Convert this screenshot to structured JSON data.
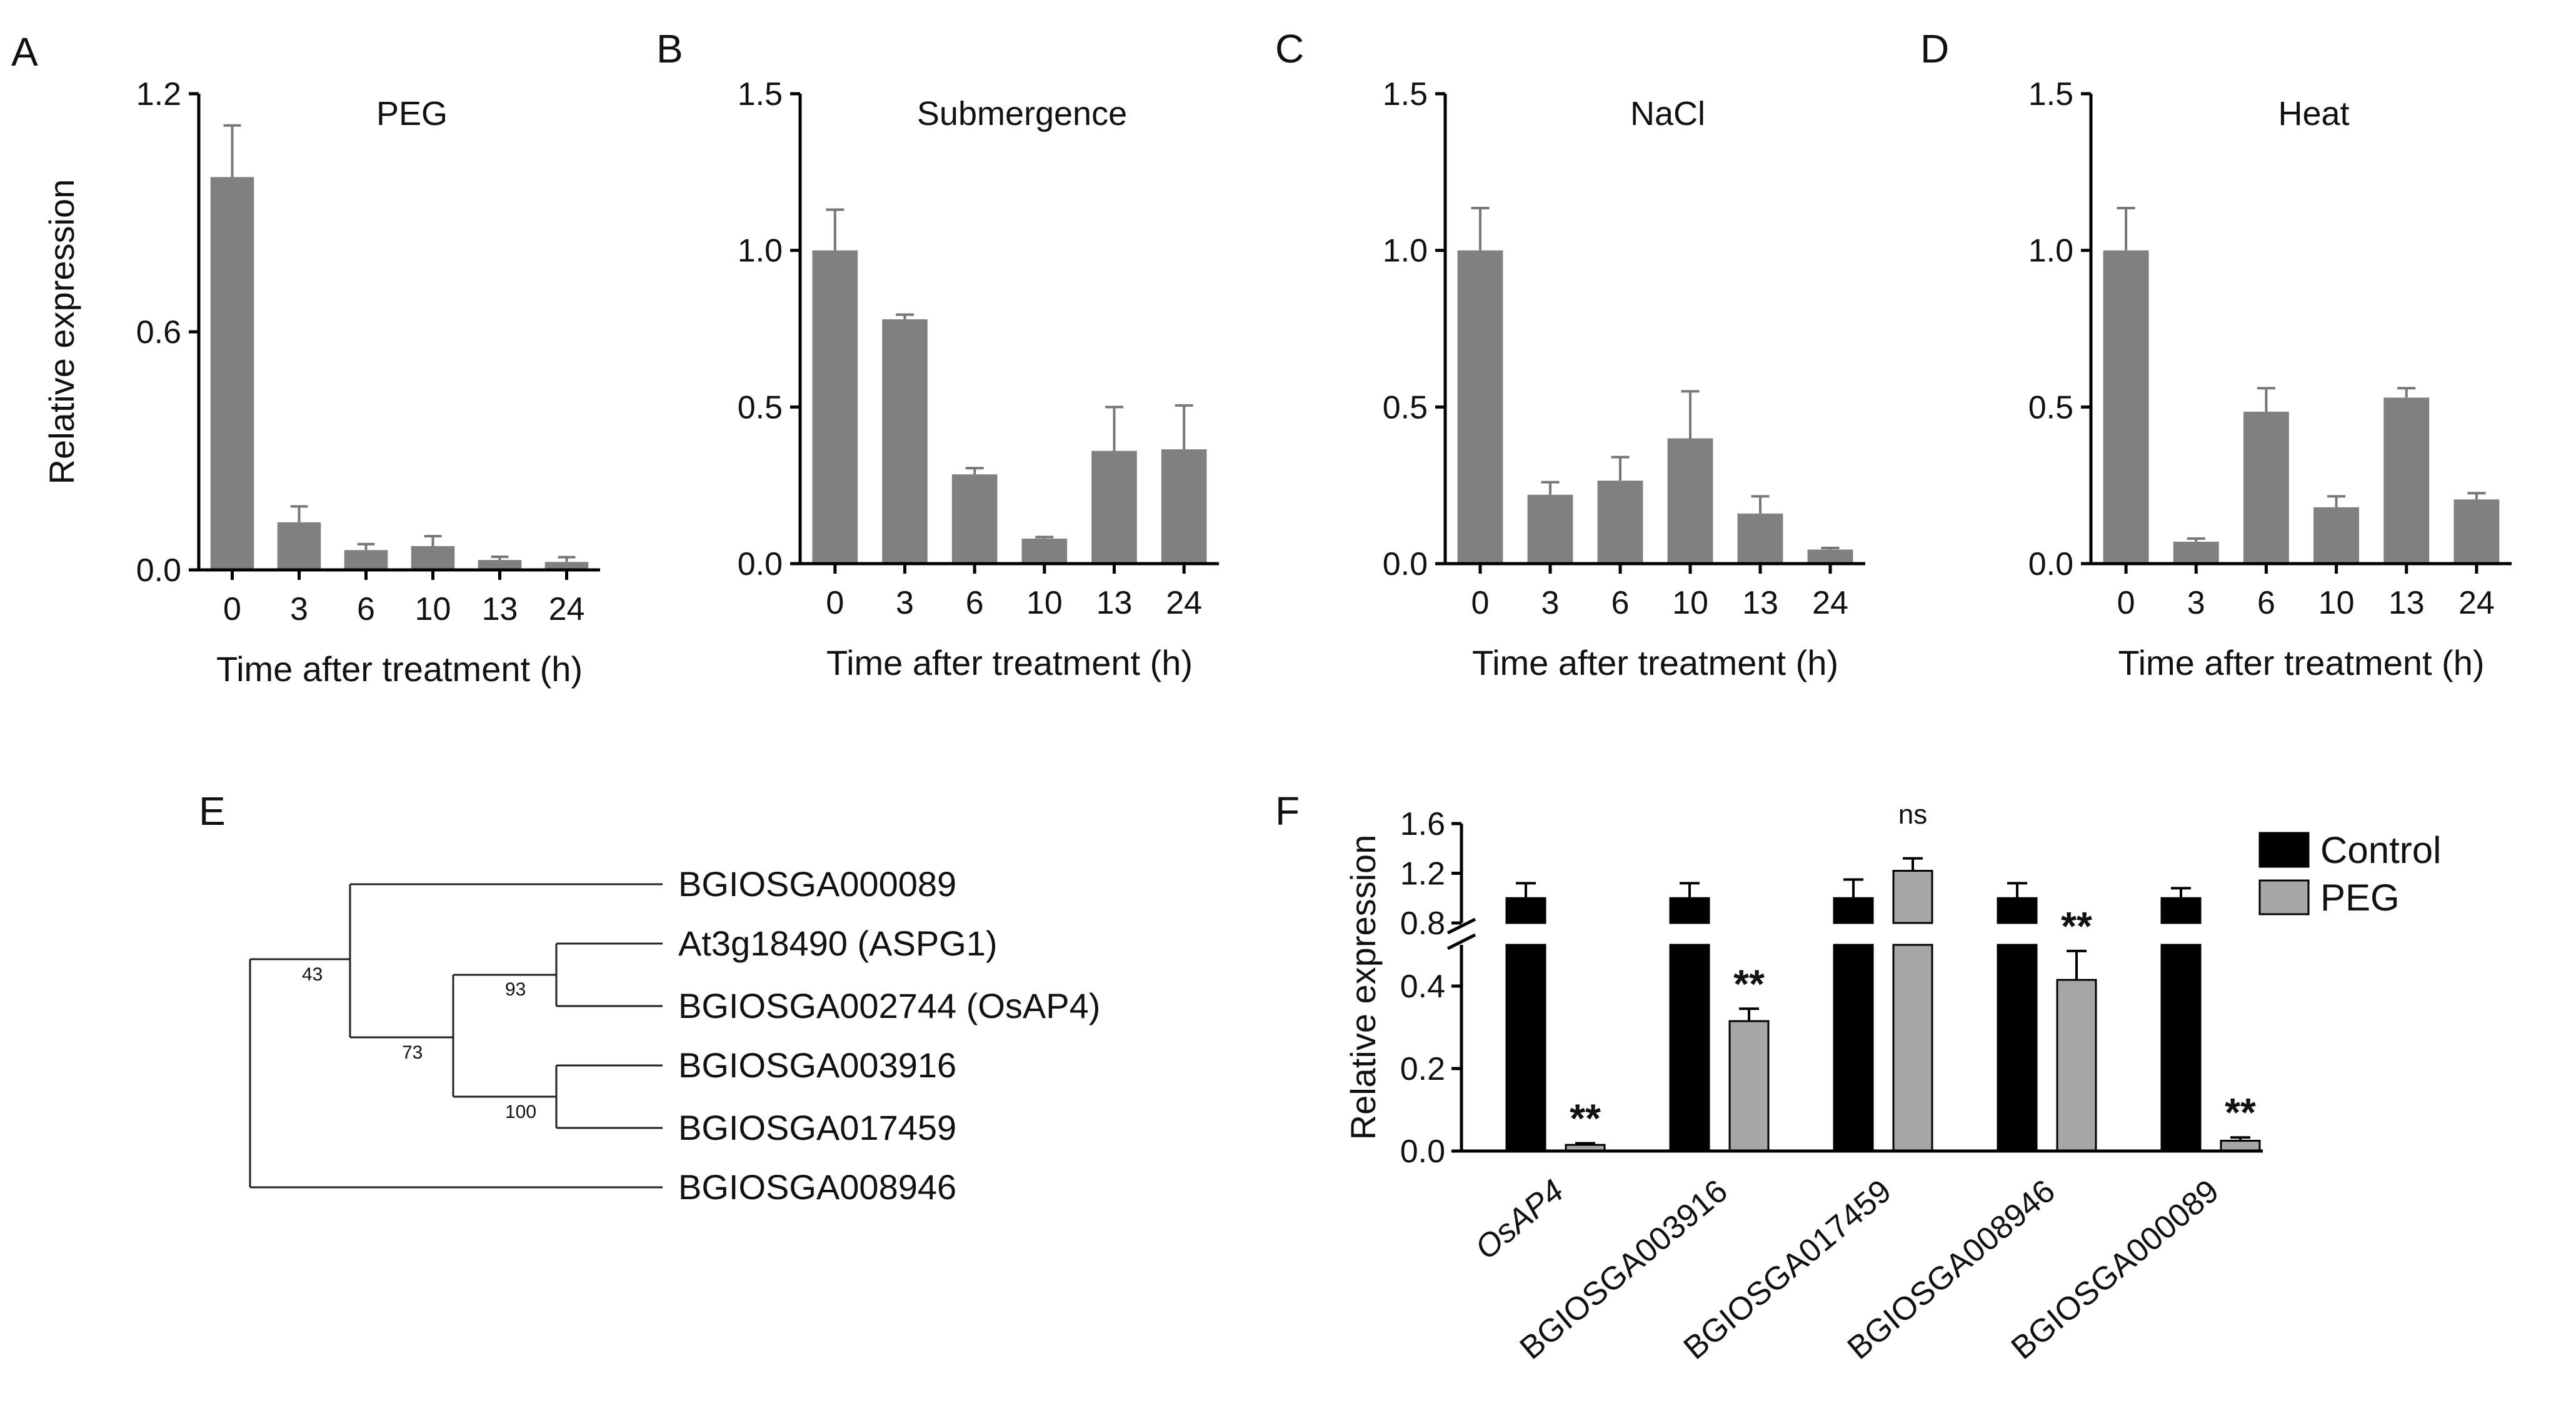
{
  "panels": {
    "a": "A",
    "b": "B",
    "c": "C",
    "d": "D",
    "e": "E",
    "f": "F"
  },
  "chart_data": [
    {
      "id": "A",
      "type": "bar",
      "title": "PEG",
      "xlabel": "Time after treatment (h)",
      "ylabel": "Relative expression",
      "categories": [
        "0",
        "3",
        "6",
        "10",
        "13",
        "24"
      ],
      "values": [
        0.99,
        0.12,
        0.05,
        0.06,
        0.025,
        0.02
      ],
      "errors": [
        0.13,
        0.04,
        0.015,
        0.025,
        0.008,
        0.012
      ],
      "ylim": [
        0,
        1.2
      ],
      "yticks": [
        "0.0",
        "0.6",
        "1.2"
      ],
      "ytick_values": [
        0,
        0.6,
        1.2
      ],
      "bar_color": "#808080"
    },
    {
      "id": "B",
      "type": "bar",
      "title": "Submergence",
      "xlabel": "Time after treatment (h)",
      "ylabel": "",
      "categories": [
        "0",
        "3",
        "6",
        "10",
        "13",
        "24"
      ],
      "values": [
        1.0,
        0.78,
        0.285,
        0.08,
        0.36,
        0.365
      ],
      "errors": [
        0.13,
        0.015,
        0.02,
        0.005,
        0.14,
        0.14
      ],
      "ylim": [
        0,
        1.5
      ],
      "yticks": [
        "0.0",
        "0.5",
        "1.0",
        "1.5"
      ],
      "ytick_values": [
        0,
        0.5,
        1.0,
        1.5
      ],
      "bar_color": "#808080"
    },
    {
      "id": "C",
      "type": "bar",
      "title": "NaCl",
      "xlabel": "Time after treatment (h)",
      "ylabel": "",
      "categories": [
        "0",
        "3",
        "6",
        "10",
        "13",
        "24"
      ],
      "values": [
        1.0,
        0.22,
        0.265,
        0.4,
        0.16,
        0.045
      ],
      "errors": [
        0.135,
        0.04,
        0.075,
        0.15,
        0.055,
        0.005
      ],
      "ylim": [
        0,
        1.5
      ],
      "yticks": [
        "0.0",
        "0.5",
        "1.0",
        "1.5"
      ],
      "ytick_values": [
        0,
        0.5,
        1.0,
        1.5
      ],
      "bar_color": "#808080"
    },
    {
      "id": "D",
      "type": "bar",
      "title": "Heat",
      "xlabel": "Time after treatment (h)",
      "ylabel": "",
      "categories": [
        "0",
        "3",
        "6",
        "10",
        "13",
        "24"
      ],
      "values": [
        1.0,
        0.07,
        0.485,
        0.18,
        0.53,
        0.205
      ],
      "errors": [
        0.135,
        0.01,
        0.075,
        0.035,
        0.03,
        0.02
      ],
      "ylim": [
        0,
        1.5
      ],
      "yticks": [
        "0.0",
        "0.5",
        "1.0",
        "1.5"
      ],
      "ytick_values": [
        0,
        0.5,
        1.0,
        1.5
      ],
      "bar_color": "#808080"
    },
    {
      "id": "F",
      "type": "bar",
      "xlabel": "",
      "ylabel": "Relative expression",
      "categories": [
        "OsAP4",
        "BGIOSGA003916",
        "BGIOSGA017459",
        "BGIOSGA008946",
        "BGIOSGA000089"
      ],
      "series": [
        {
          "name": "Control",
          "color": "#000000",
          "values": [
            1.0,
            1.0,
            1.0,
            1.0,
            1.0
          ],
          "errors": [
            0.12,
            0.12,
            0.15,
            0.12,
            0.08
          ]
        },
        {
          "name": "PEG",
          "color": "#a6a6a6",
          "values": [
            0.015,
            0.315,
            1.22,
            0.415,
            0.025
          ],
          "errors": [
            0.004,
            0.03,
            0.1,
            0.07,
            0.008
          ]
        }
      ],
      "significance": [
        "**",
        "**",
        "ns",
        "**",
        "**"
      ],
      "ylim_lower": [
        0,
        0.5
      ],
      "ylim_upper": [
        0.8,
        1.6
      ],
      "yticks_upper": [
        "0.8",
        "1.2",
        "1.6"
      ],
      "yticks_upper_values": [
        0.8,
        1.2,
        1.6
      ],
      "yticks_lower": [
        "0.0",
        "0.2",
        "0.4"
      ],
      "yticks_lower_values": [
        0,
        0.2,
        0.4
      ],
      "legend_position": "top-right"
    }
  ],
  "tree": {
    "labels": [
      "BGIOSGA000089",
      "At3g18490 (ASPG1)",
      "BGIOSGA002744 (OsAP4)",
      "BGIOSGA003916",
      "BGIOSGA017459",
      "BGIOSGA008946"
    ],
    "bootstraps": [
      "43",
      "93",
      "73",
      "100"
    ]
  }
}
